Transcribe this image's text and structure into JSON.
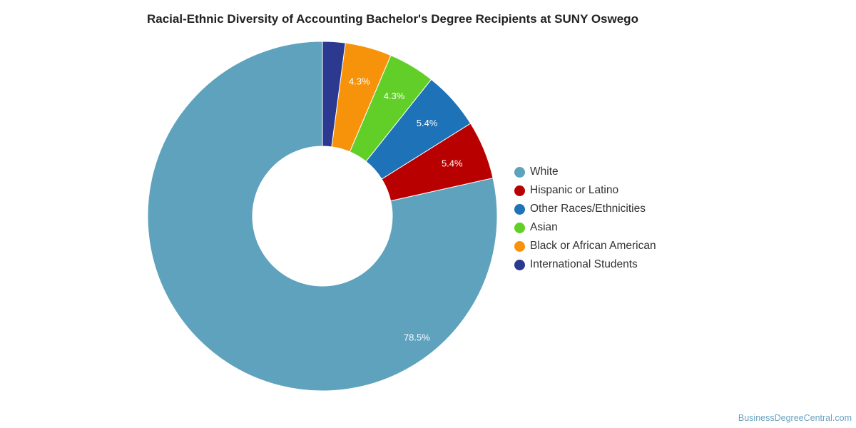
{
  "chart_data": {
    "type": "pie",
    "variant": "donut",
    "title": "Racial-Ethnic Diversity of Accounting Bachelor's Degree Recipients at SUNY Oswego",
    "unit": "%",
    "categories": [
      "White",
      "Hispanic or Latino",
      "Other Races/Ethnicities",
      "Asian",
      "Black or African American",
      "International Students"
    ],
    "values": [
      78.5,
      5.4,
      5.4,
      4.3,
      4.3,
      2.1
    ],
    "data_labels": [
      "78.5%",
      "5.4%",
      "5.4%",
      "4.3%",
      "4.3%",
      ""
    ],
    "colors": [
      "#5ea2be",
      "#b90000",
      "#1e72b8",
      "#62cf28",
      "#f7930a",
      "#2b3990"
    ],
    "legend_position": "right",
    "direction": "counterclockwise-from-top"
  },
  "footer": {
    "credit": "BusinessDegreeCentral.com"
  }
}
